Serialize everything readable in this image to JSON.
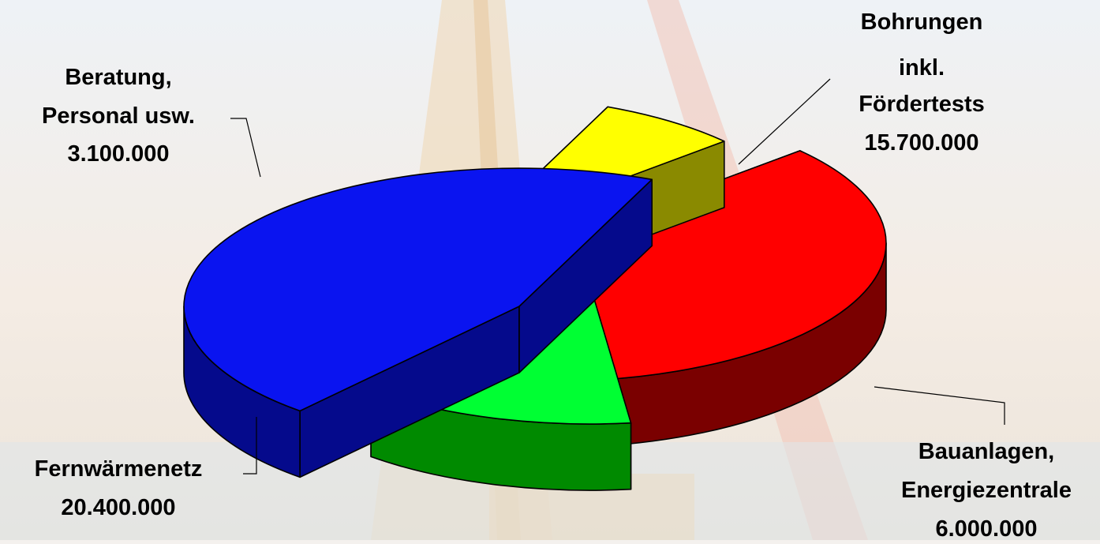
{
  "chart_data": {
    "type": "pie",
    "title": "",
    "style": "3d-exploded",
    "slices": [
      {
        "label_lines": [
          "Bohrungen",
          "inkl.",
          "Fördertests"
        ],
        "value_text": "15.700.000",
        "value": 15700000,
        "color": "#ff0000",
        "side_color": "#7a0000"
      },
      {
        "label_lines": [
          "Bauanlagen,",
          "Energiezentrale"
        ],
        "value_text": "6.000.000",
        "value": 6000000,
        "color": "#00ff33",
        "side_color": "#008a00"
      },
      {
        "label_lines": [
          "Fernwärmenetz"
        ],
        "value_text": "20.400.000",
        "value": 20400000,
        "color": "#0a14f0",
        "side_color": "#050a8c"
      },
      {
        "label_lines": [
          "Beratung,",
          "Personal usw."
        ],
        "value_text": "3.100.000",
        "value": 3100000,
        "color": "#ffff00",
        "side_color": "#8a8a00"
      }
    ],
    "legend": "none",
    "background": "photo of drilling rig (faded)"
  }
}
